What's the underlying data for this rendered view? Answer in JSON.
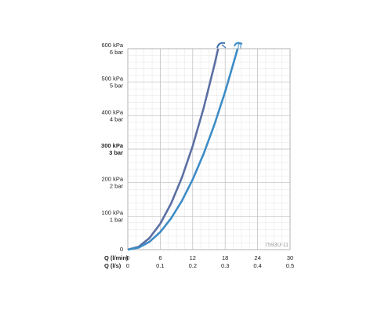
{
  "chart_data": {
    "type": "line",
    "x_label": "Q (l/min)",
    "x2_label": "Q (l/s)",
    "annotation": "7593U-11",
    "xlim": [
      0,
      30
    ],
    "xticks": [
      0,
      6,
      12,
      18,
      24,
      30
    ],
    "x2lim": [
      0,
      0.5
    ],
    "x2ticks": [
      0,
      0.1,
      0.2,
      0.3,
      0.4,
      0.5
    ],
    "ylim": [
      0,
      600
    ],
    "yticks": [
      0,
      {
        "value": 100,
        "label": "100 kPa"
      },
      {
        "value": 200,
        "label": "200 kPa"
      },
      {
        "value": 300,
        "label": "300 kPa"
      },
      {
        "value": 400,
        "label": "400 kPa"
      },
      {
        "value": 500,
        "label": "500 kPa"
      },
      {
        "value": 600,
        "label": "600 kPa"
      }
    ],
    "y2lim": [
      0,
      6
    ],
    "y2ticks": [
      {
        "value": 1,
        "label": "1 bar"
      },
      {
        "value": 2,
        "label": "2 bar"
      },
      {
        "value": 3,
        "label": "3 bar"
      },
      {
        "value": 4,
        "label": "4 bar"
      },
      {
        "value": 5,
        "label": "5 bar"
      },
      {
        "value": 6,
        "label": "6 bar"
      }
    ],
    "bold_ytick": 300,
    "grid": true,
    "minor_xstep": 1.5,
    "minor_ystep": 20,
    "series": [
      {
        "color": "#5b6fa3",
        "x": [
          0,
          2,
          4,
          6,
          8,
          10,
          12,
          14,
          16,
          16.7
        ],
        "values": [
          0,
          8.6,
          34.4,
          77.4,
          137.6,
          215,
          309.6,
          421.4,
          550.4,
          600
        ]
      },
      {
        "color": "#3d8cc6",
        "x": [
          0,
          2,
          4,
          6,
          8,
          10,
          12,
          14,
          16,
          18,
          20,
          20.3
        ],
        "values": [
          0,
          5.8,
          23.3,
          52.4,
          93.2,
          145.6,
          209.7,
          285.3,
          372.7,
          471.7,
          582.4,
          600
        ]
      }
    ]
  }
}
